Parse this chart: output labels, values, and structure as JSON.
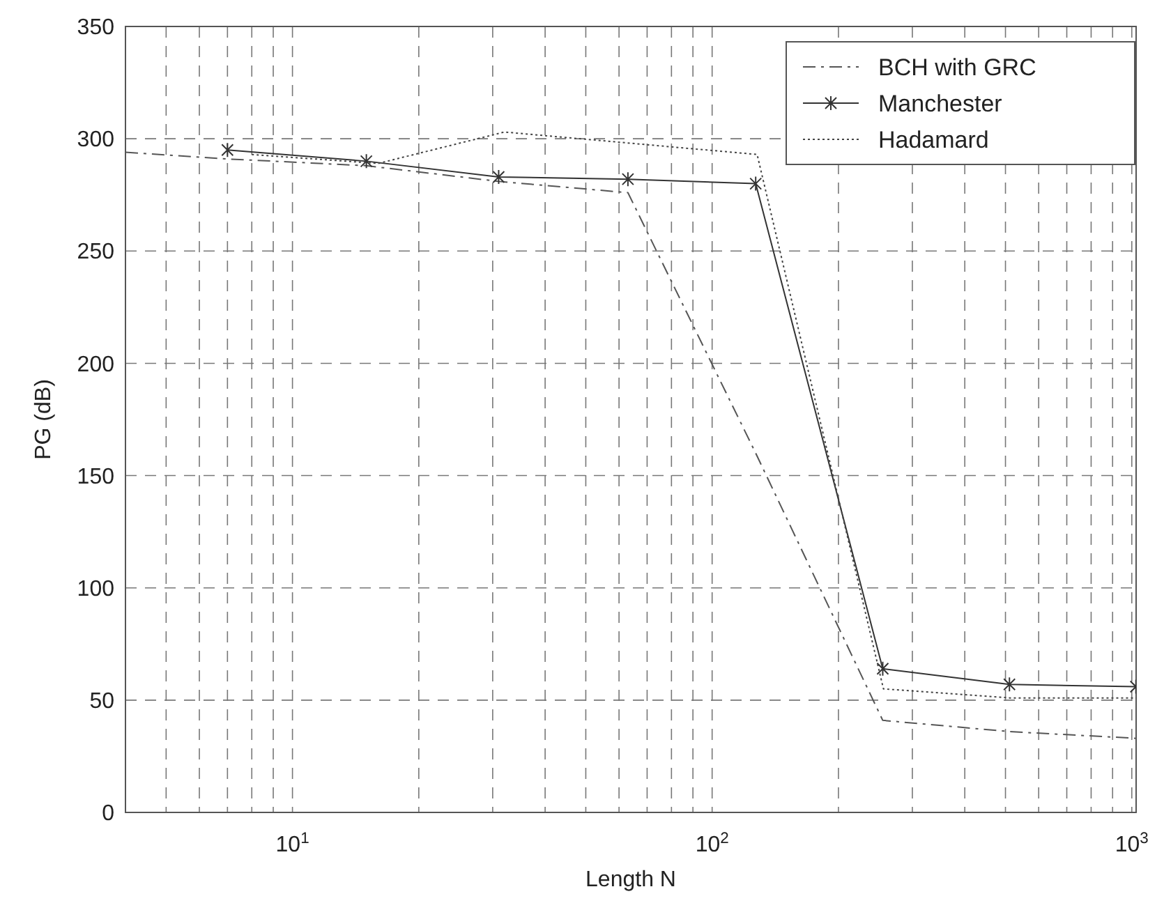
{
  "chart_data": {
    "type": "line",
    "xlabel": "Length N",
    "ylabel": "PG (dB)",
    "log": "x",
    "grid": true,
    "legend": "top right",
    "xlim": [
      4,
      1024
    ],
    "xticks": [
      {
        "value": 10,
        "label": "10$^{1}$"
      },
      {
        "value": 100,
        "label": "10$^{2}$"
      },
      {
        "value": 1000,
        "label": "10$^{3}$"
      }
    ],
    "ylim": [
      0,
      350
    ],
    "yticks": [
      0,
      50,
      100,
      150,
      200,
      250,
      300,
      350
    ],
    "series": [
      {
        "name": "BCH with GRC",
        "color": "#555555",
        "line_style": "dashed",
        "marker": "none",
        "x": [
          4,
          7,
          15,
          31,
          63,
          127,
          255,
          511,
          1023
        ],
        "values": [
          294,
          291,
          288,
          281,
          276,
          160,
          41,
          36,
          33
        ]
      },
      {
        "name": "Manchester",
        "color": "#333333",
        "line_style": "solid",
        "marker": "cross",
        "x": [
          7,
          15,
          31,
          63,
          127,
          255,
          511,
          1023
        ],
        "values": [
          295,
          290,
          283,
          282,
          280,
          64,
          57,
          56
        ]
      },
      {
        "name": "Hadamard",
        "color": "#444444",
        "line_style": "dotted",
        "marker": "none",
        "x": [
          8,
          16,
          32,
          64,
          128,
          256,
          512,
          1024
        ],
        "values": [
          293,
          289,
          303,
          298,
          293,
          55,
          51,
          51
        ]
      }
    ]
  }
}
